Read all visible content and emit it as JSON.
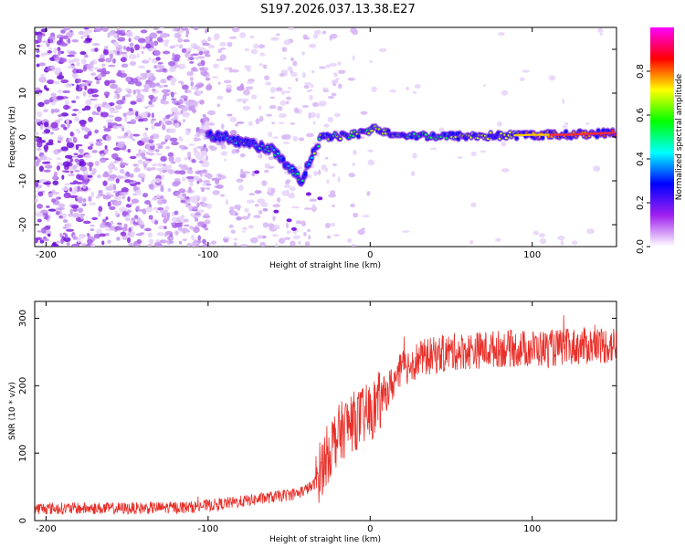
{
  "title": "S197.2026.037.13.38.E27",
  "chart_data": [
    {
      "type": "heatmap",
      "xlabel": "Height of straight line (km)",
      "ylabel": "Frequency (Hz)",
      "xlim": [
        -207,
        152
      ],
      "ylim": [
        -25,
        25
      ],
      "xticks": [
        -200,
        -100,
        0,
        100
      ],
      "xtick_labels": [
        "-200",
        "-100",
        "0",
        "100"
      ],
      "yticks": [
        -20,
        -10,
        0,
        10,
        20
      ],
      "ytick_labels": [
        "-20",
        "-10",
        "0",
        "10",
        "20"
      ],
      "colorbar": {
        "label": "Normalized spectral amplitude",
        "range": [
          0,
          1
        ],
        "ticks": [
          0.0,
          0.2,
          0.4,
          0.6,
          0.8
        ],
        "tick_labels": [
          "0.0",
          "0.2",
          "0.4",
          "0.6",
          "0.8"
        ],
        "colors": [
          "#ffffff",
          "#a020f0",
          "#0000ff",
          "#00ffff",
          "#00ff00",
          "#ffff00",
          "#ff0000",
          "#ff00ff"
        ]
      },
      "signal_track": {
        "description_free": true,
        "x": [
          -100,
          -90,
          -80,
          -70,
          -60,
          -50,
          -42,
          -38,
          -30,
          -20,
          -10,
          0,
          5,
          10,
          20,
          40,
          60,
          80,
          100,
          120,
          140,
          152
        ],
        "y": [
          0.5,
          0,
          -1,
          -2,
          -3,
          -7,
          -10,
          -6,
          0,
          0,
          0.5,
          1.5,
          2,
          1,
          0.5,
          0.2,
          0.2,
          0.3,
          0.5,
          0.5,
          0.8,
          1
        ]
      }
    },
    {
      "type": "line",
      "xlabel": "Height of straight line (km)",
      "ylabel": "SNR (10 * v/v)",
      "xlim": [
        -207,
        152
      ],
      "ylim": [
        0,
        325
      ],
      "xticks": [
        -200,
        -100,
        0,
        100
      ],
      "xtick_labels": [
        "-200",
        "-100",
        "0",
        "100"
      ],
      "yticks": [
        0,
        100,
        200,
        300
      ],
      "ytick_labels": [
        "0",
        "100",
        "200",
        "300"
      ],
      "line_color": "#e8302a",
      "envelope": {
        "x": [
          -207,
          -150,
          -110,
          -95,
          -80,
          -60,
          -45,
          -35,
          -28,
          -22,
          -15,
          -8,
          0,
          10,
          20,
          30,
          50,
          80,
          110,
          140,
          152
        ],
        "y": [
          18,
          18,
          20,
          24,
          28,
          35,
          40,
          52,
          90,
          120,
          140,
          150,
          160,
          190,
          225,
          240,
          250,
          255,
          255,
          260,
          260
        ]
      }
    }
  ]
}
